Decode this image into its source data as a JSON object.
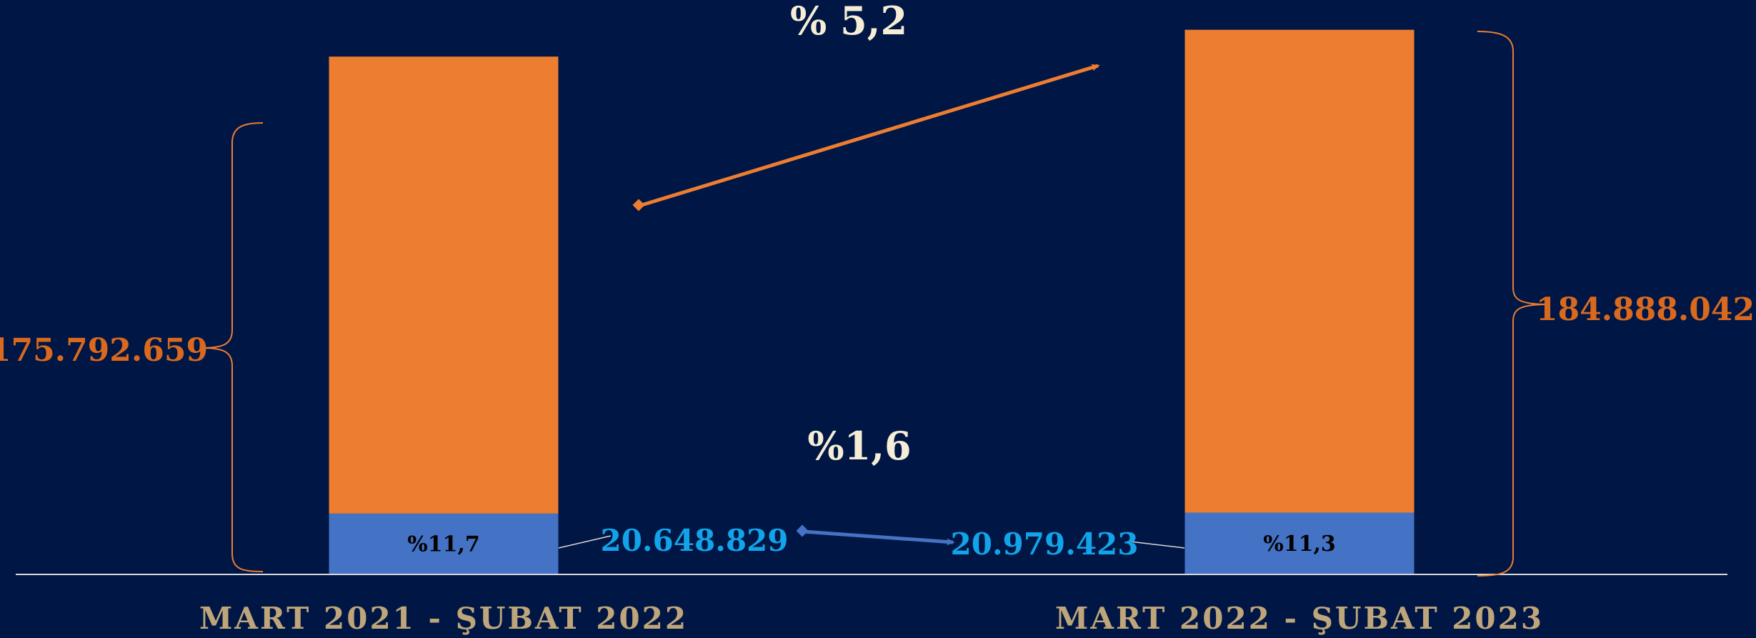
{
  "chart_data": {
    "type": "bar",
    "stacked": true,
    "categories": [
      "MART 2021 - ŞUBAT 2022",
      "MART 2022 - ŞUBAT 2023"
    ],
    "totals": [
      175792659,
      184888042
    ],
    "total_labels": [
      "175.792.659",
      "184.888.042"
    ],
    "series": [
      {
        "values": [
          20648829,
          20979423
        ],
        "value_labels": [
          "20.648.829",
          "20.979.423"
        ],
        "percent_labels": [
          "%11,7",
          "%11,3"
        ]
      },
      {
        "values": [
          155143830,
          163908619
        ]
      }
    ],
    "ylim": [
      0,
      195000000
    ],
    "annotations": {
      "total_growth": "% 5,2",
      "sub_growth": "%1,6"
    },
    "grid": false,
    "legend": "none"
  },
  "colors": {
    "background": "#001644",
    "orange": "#ED7D31",
    "orange_text": "#D9691F",
    "blue": "#4472C4",
    "cyan_text": "#12A3E8",
    "cream_text": "#F5EDD6",
    "category_text": "#BFA57A",
    "axis": "#D9D9D9",
    "dark_text": "#000000"
  }
}
